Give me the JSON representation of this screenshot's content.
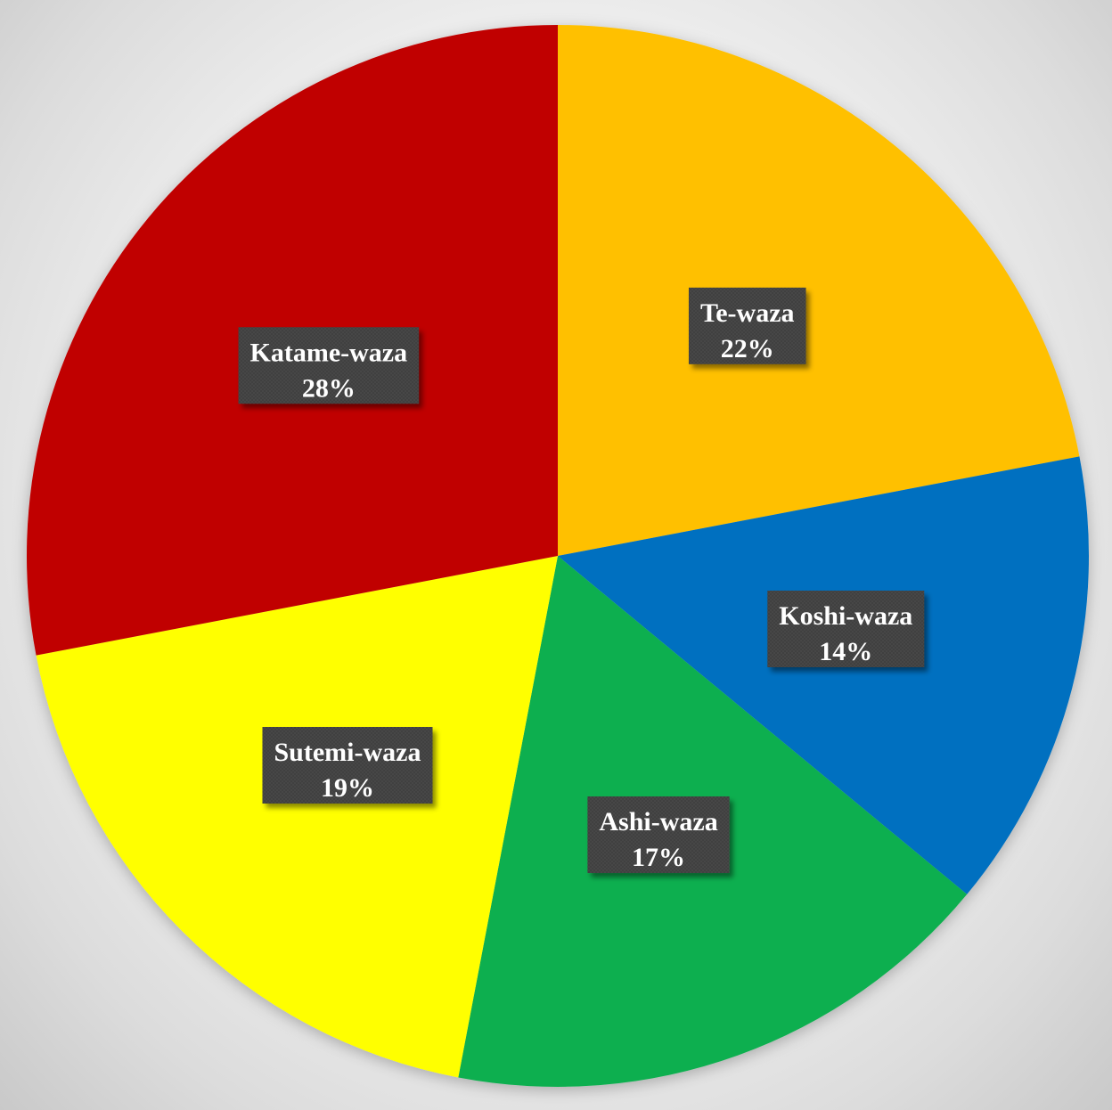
{
  "chart_data": {
    "type": "pie",
    "title": "",
    "slices": [
      {
        "label": "Te-waza",
        "value": 22,
        "display": "22%",
        "color": "#FFC000"
      },
      {
        "label": "Koshi-waza",
        "value": 14,
        "display": "14%",
        "color": "#0070C0"
      },
      {
        "label": "Ashi-waza",
        "value": 17,
        "display": "17%",
        "color": "#0FAF50"
      },
      {
        "label": "Sutemi-waza",
        "value": 19,
        "display": "19%",
        "color": "#FFFF00"
      },
      {
        "label": "Katame-waza",
        "value": 28,
        "display": "28%",
        "color": "#C00000"
      }
    ],
    "start_angle": "12 o'clock",
    "direction": "clockwise",
    "legend": "none",
    "label_style": "dark boxes with white text inside slices"
  }
}
